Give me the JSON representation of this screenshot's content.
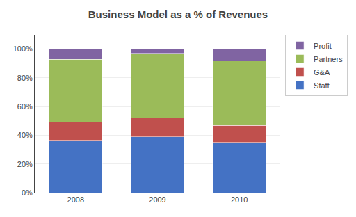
{
  "chart_data": {
    "type": "bar",
    "title": "Business Model as a % of Revenues",
    "categories": [
      "2008",
      "2009",
      "2010"
    ],
    "series": [
      {
        "name": "Staff",
        "color": "#4472C4",
        "values": [
          36,
          39,
          35
        ]
      },
      {
        "name": "G&A",
        "color": "#C0504D",
        "values": [
          13,
          13,
          12
        ]
      },
      {
        "name": "Partners",
        "color": "#9BBB59",
        "values": [
          44,
          45,
          45
        ]
      },
      {
        "name": "Profit",
        "color": "#8064A2",
        "values": [
          7,
          3,
          8
        ]
      }
    ],
    "stacked": true,
    "ylim": [
      0,
      110
    ],
    "yticks": [
      {
        "value": 0,
        "label": "0%"
      },
      {
        "value": 20,
        "label": "20%"
      },
      {
        "value": 40,
        "label": "40%"
      },
      {
        "value": 60,
        "label": "60%"
      },
      {
        "value": 80,
        "label": "80%"
      },
      {
        "value": 100,
        "label": "100%"
      }
    ],
    "grid": true,
    "legend": "upper right"
  }
}
